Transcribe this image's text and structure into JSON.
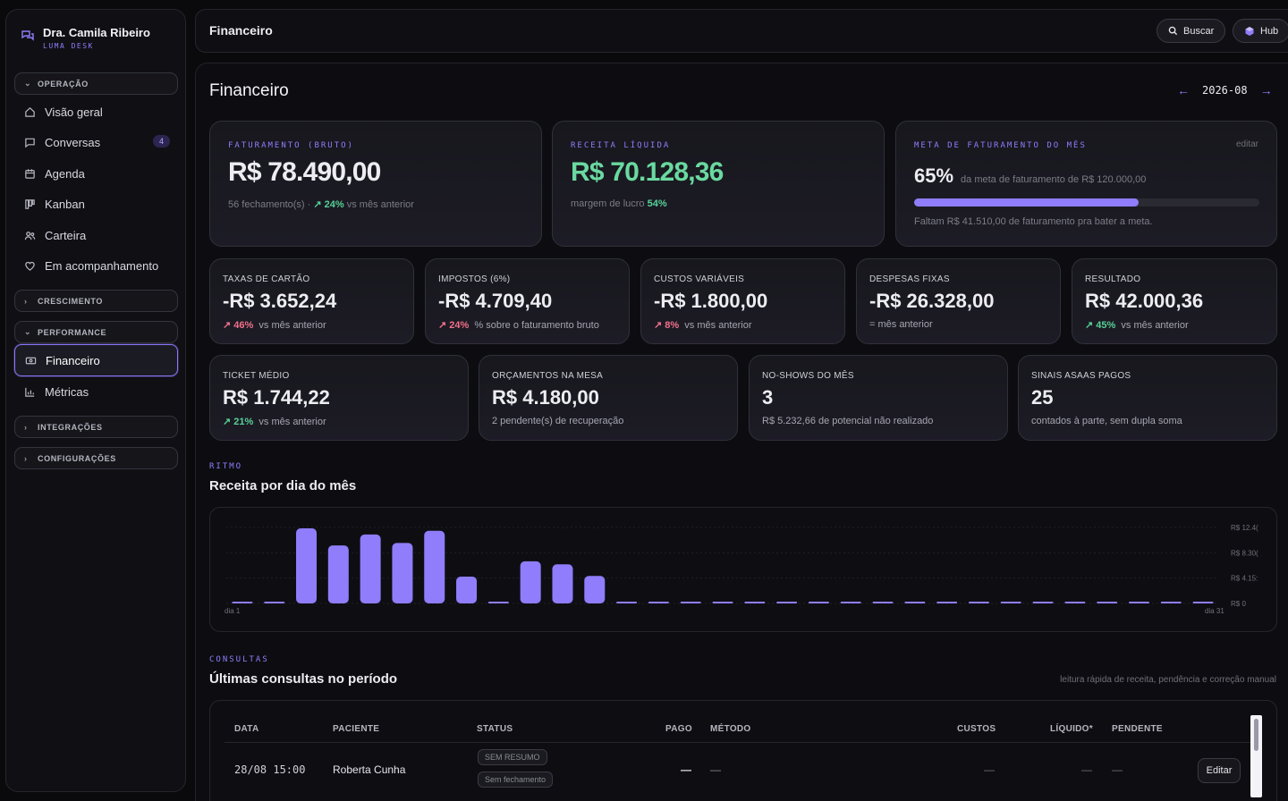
{
  "sidebar": {
    "user_name": "Dra. Camila Ribeiro",
    "app_name": "LUMA DESK",
    "groups": {
      "operacao": "OPERAÇÃO",
      "crescimento": "CRESCIMENTO",
      "performance": "PERFORMANCE",
      "integracoes": "INTEGRAÇÕES",
      "configuracoes": "CONFIGURAÇÕES"
    },
    "items": {
      "visao_geral": "Visão geral",
      "conversas": "Conversas",
      "conversas_badge": "4",
      "agenda": "Agenda",
      "kanban": "Kanban",
      "carteira": "Carteira",
      "acompanhamento": "Em acompanhamento",
      "financeiro": "Financeiro",
      "metricas": "Métricas"
    }
  },
  "topbar": {
    "title": "Financeiro",
    "search_label": "Buscar",
    "hub_label": "Hub"
  },
  "page": {
    "title": "Financeiro",
    "month": "2026-08",
    "prev_arrow": "←",
    "next_arrow": "→"
  },
  "kpis": {
    "faturamento": {
      "label": "FATURAMENTO (BRUTO)",
      "value": "R$ 78.490,00",
      "sub_prefix": "56 fechamento(s) · ",
      "change": "↗ 24%",
      "sub_suffix": " vs mês anterior"
    },
    "receita": {
      "label": "RECEITA LÍQUIDA",
      "value": "R$ 70.128,36",
      "sub_prefix": "margem de lucro ",
      "margin": "54%"
    },
    "meta": {
      "label": "META DE FATURAMENTO DO MÊS",
      "edit": "editar",
      "percent": "65%",
      "percent_value": 0.65,
      "desc": "da meta de faturamento de R$ 120.000,00",
      "remaining": "Faltam R$ 41.510,00 de faturamento pra bater a meta."
    }
  },
  "stats": [
    {
      "label": "TAXAS DE CARTÃO",
      "value": "-R$ 3.652,24",
      "change": "↗ 46%",
      "trend": "red",
      "sub": "vs mês anterior"
    },
    {
      "label": "IMPOSTOS (6%)",
      "value": "-R$ 4.709,40",
      "change": "↗ 24%",
      "trend": "red",
      "sub": "% sobre o faturamento bruto"
    },
    {
      "label": "CUSTOS VARIÁVEIS",
      "value": "-R$ 1.800,00",
      "change": "↗ 8%",
      "trend": "red",
      "sub": "vs mês anterior"
    },
    {
      "label": "DESPESAS FIXAS",
      "value": "-R$ 26.328,00",
      "change": "",
      "trend": "none",
      "sub": "= mês anterior"
    },
    {
      "label": "RESULTADO",
      "value": "R$ 42.000,36",
      "change": "↗ 45%",
      "trend": "green",
      "sub": "vs mês anterior"
    }
  ],
  "stats2": [
    {
      "label": "TICKET MÉDIO",
      "value": "R$ 1.744,22",
      "change": "↗ 21%",
      "trend": "green",
      "sub": "vs mês anterior"
    },
    {
      "label": "ORÇAMENTOS NA MESA",
      "value": "R$ 4.180,00",
      "change": "",
      "trend": "none",
      "sub": "2 pendente(s) de recuperação"
    },
    {
      "label": "NO-SHOWS DO MÊS",
      "value": "3",
      "change": "",
      "trend": "none",
      "sub": "R$ 5.232,66 de potencial não realizado"
    },
    {
      "label": "SINAIS ASAAS PAGOS",
      "value": "25",
      "change": "",
      "trend": "none",
      "sub": "contados à parte, sem dupla soma"
    }
  ],
  "rhythm": {
    "kicker": "RITMO",
    "title": "Receita por dia do mês"
  },
  "chart_data": {
    "type": "bar",
    "title": "Receita por dia do mês",
    "categories": [
      "1",
      "2",
      "3",
      "4",
      "5",
      "6",
      "7",
      "8",
      "9",
      "10",
      "11",
      "12",
      "13",
      "14",
      "15",
      "16",
      "17",
      "18",
      "19",
      "20",
      "21",
      "22",
      "23",
      "24",
      "25",
      "26",
      "27",
      "28",
      "29",
      "30",
      "31"
    ],
    "values": [
      0,
      0,
      12300,
      9500,
      11300,
      9900,
      11900,
      4400,
      0,
      6900,
      6400,
      4500,
      0,
      0,
      0,
      0,
      0,
      0,
      0,
      0,
      0,
      0,
      0,
      0,
      0,
      0,
      0,
      0,
      0,
      0,
      0
    ],
    "x_first_label": "dia 1",
    "x_last_label": "dia 31",
    "y_ticks": [
      "R$ 12.4(",
      "R$ 8.30(",
      "R$ 4.15:",
      "R$ 0"
    ],
    "ylim": [
      0,
      12450
    ],
    "bar_color": "#8f7dfb"
  },
  "consultas": {
    "kicker": "CONSULTAS",
    "title": "Últimas consultas no período",
    "subtitle": "leitura rápida de receita, pendência e correção manual",
    "columns": {
      "data": "DATA",
      "paciente": "PACIENTE",
      "status": "STATUS",
      "pago": "PAGO",
      "metodo": "MÉTODO",
      "custos": "CUSTOS",
      "liquido": "LÍQUIDO*",
      "pendente": "PENDENTE"
    },
    "rows": [
      {
        "data": "28/08 15:00",
        "paciente": "Roberta Cunha",
        "status1": "SEM RESUMO",
        "status2": "Sem fechamento",
        "pago": "—",
        "metodo": "—",
        "custos": "—",
        "liquido": "—",
        "pendente": "—",
        "action": "Editar"
      }
    ]
  }
}
